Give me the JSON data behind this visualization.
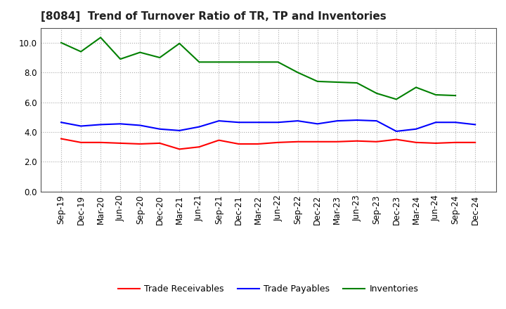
{
  "title": "[8084]  Trend of Turnover Ratio of TR, TP and Inventories",
  "x_labels": [
    "Sep-19",
    "Dec-19",
    "Mar-20",
    "Jun-20",
    "Sep-20",
    "Dec-20",
    "Mar-21",
    "Jun-21",
    "Sep-21",
    "Dec-21",
    "Mar-22",
    "Jun-22",
    "Sep-22",
    "Dec-22",
    "Mar-23",
    "Jun-23",
    "Sep-23",
    "Dec-23",
    "Mar-24",
    "Jun-24",
    "Sep-24",
    "Dec-24"
  ],
  "trade_receivables": [
    3.55,
    3.3,
    3.3,
    3.25,
    3.2,
    3.25,
    2.85,
    3.0,
    3.45,
    3.2,
    3.2,
    3.3,
    3.35,
    3.35,
    3.35,
    3.4,
    3.35,
    3.5,
    3.3,
    3.25,
    3.3,
    3.3
  ],
  "trade_payables": [
    4.65,
    4.4,
    4.5,
    4.55,
    4.45,
    4.2,
    4.1,
    4.35,
    4.75,
    4.65,
    4.65,
    4.65,
    4.75,
    4.55,
    4.75,
    4.8,
    4.75,
    4.05,
    4.2,
    4.65,
    4.65,
    4.5
  ],
  "inventories": [
    10.0,
    9.4,
    10.35,
    8.9,
    9.35,
    9.0,
    9.95,
    8.7,
    8.7,
    8.7,
    8.7,
    8.7,
    8.0,
    7.4,
    7.35,
    7.3,
    6.6,
    6.2,
    7.0,
    6.5,
    6.45,
    null
  ],
  "tr_color": "#ff0000",
  "tp_color": "#0000ff",
  "inv_color": "#008000",
  "ylim": [
    0.0,
    11.0
  ],
  "yticks": [
    0.0,
    2.0,
    4.0,
    6.0,
    8.0,
    10.0
  ],
  "background_color": "#ffffff",
  "grid_color": "#aaaaaa",
  "title_fontsize": 11,
  "tick_fontsize": 8.5,
  "legend_fontsize": 9
}
